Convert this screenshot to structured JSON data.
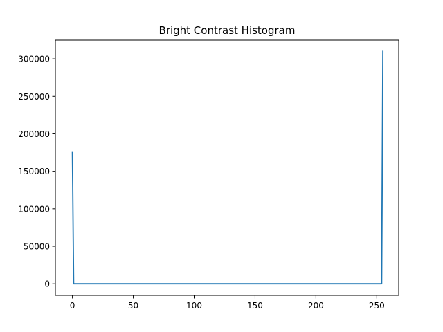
{
  "chart_data": {
    "type": "line",
    "title": "Bright Contrast Histogram",
    "xlabel": "",
    "ylabel": "",
    "xlim": [
      -14,
      268
    ],
    "ylim": [
      -15500,
      325000
    ],
    "xticks": [
      0,
      50,
      100,
      150,
      200,
      250
    ],
    "yticks": [
      0,
      50000,
      100000,
      150000,
      200000,
      250000,
      300000
    ],
    "series": [
      {
        "color": "#1f77b4",
        "x": [
          0,
          1,
          2,
          254,
          255
        ],
        "y": [
          175000,
          0,
          0,
          0,
          310000
        ]
      }
    ],
    "grid": false,
    "legend": "none"
  }
}
